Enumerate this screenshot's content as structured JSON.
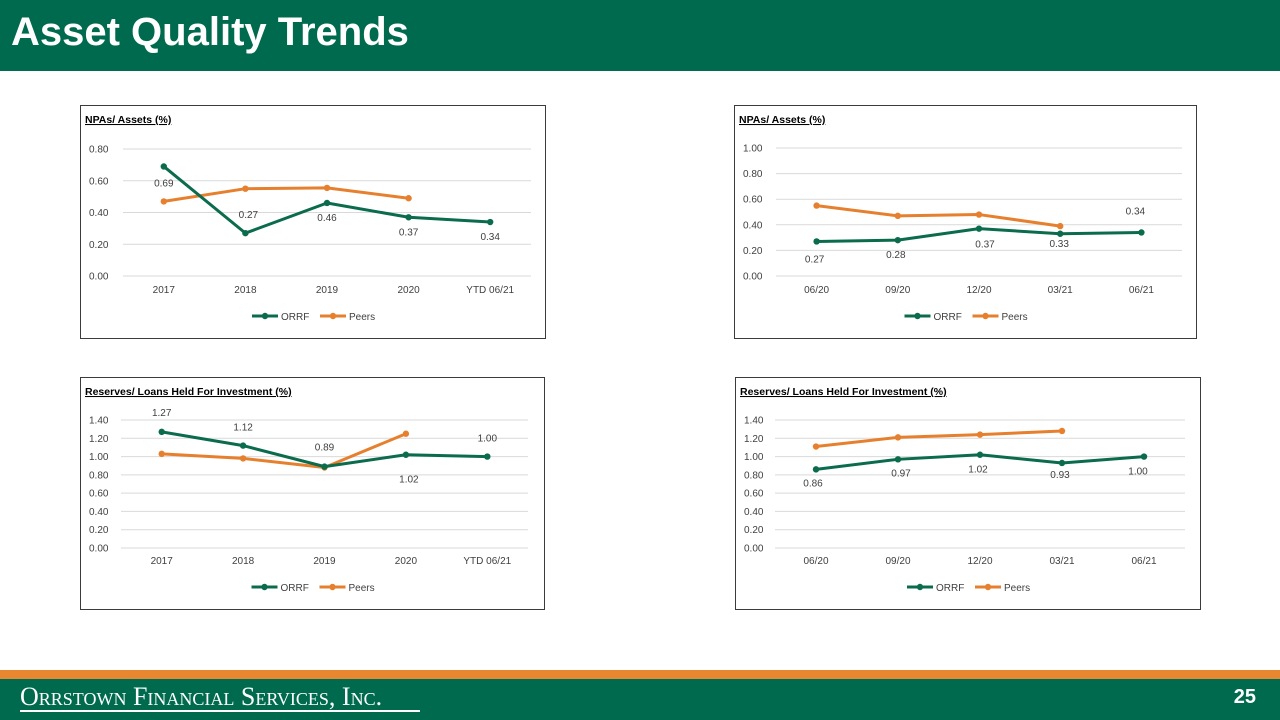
{
  "page": {
    "title": "Asset Quality Trends",
    "company": "Orrstown Financial Services, Inc.",
    "page_number": "25"
  },
  "colors": {
    "brand_green": "#006a4e",
    "accent_orange": "#e8872f",
    "orrf": "#0b6b4d",
    "peers": "#e6802e"
  },
  "chart_data": [
    {
      "type": "line",
      "title": "NPAs/ Assets (%)",
      "categories": [
        "2017",
        "2018",
        "2019",
        "2020",
        "YTD 06/21"
      ],
      "ylim": [
        0,
        0.8
      ],
      "yticks": [
        "0.00",
        "0.20",
        "0.40",
        "0.60",
        "0.80"
      ],
      "series": [
        {
          "name": "ORRF",
          "values": [
            0.69,
            0.27,
            0.46,
            0.37,
            0.34
          ],
          "labels": [
            "0.69",
            "0.27",
            "0.46",
            "0.37",
            "0.34"
          ]
        },
        {
          "name": "Peers",
          "values": [
            0.47,
            0.55,
            0.555,
            0.49,
            null
          ]
        }
      ],
      "legend": [
        "ORRF",
        "Peers"
      ]
    },
    {
      "type": "line",
      "title": "NPAs/ Assets (%)",
      "categories": [
        "06/20",
        "09/20",
        "12/20",
        "03/21",
        "06/21"
      ],
      "ylim": [
        0,
        1.0
      ],
      "yticks": [
        "0.00",
        "0.20",
        "0.40",
        "0.60",
        "0.80",
        "1.00"
      ],
      "series": [
        {
          "name": "ORRF",
          "values": [
            0.27,
            0.28,
            0.37,
            0.33,
            0.34
          ],
          "labels": [
            "0.27",
            "0.28",
            "0.37",
            "0.33",
            "0.34"
          ]
        },
        {
          "name": "Peers",
          "values": [
            0.55,
            0.47,
            0.48,
            0.39,
            null
          ]
        }
      ],
      "legend": [
        "ORRF",
        "Peers"
      ]
    },
    {
      "type": "line",
      "title": "Reserves/ Loans Held For Investment (%)",
      "categories": [
        "2017",
        "2018",
        "2019",
        "2020",
        "YTD 06/21"
      ],
      "ylim": [
        0,
        1.4
      ],
      "yticks": [
        "0.00",
        "0.20",
        "0.40",
        "0.60",
        "0.80",
        "1.00",
        "1.20",
        "1.40"
      ],
      "series": [
        {
          "name": "ORRF",
          "values": [
            1.27,
            1.12,
            0.89,
            1.02,
            1.0
          ],
          "labels": [
            "1.27",
            "1.12",
            "0.89",
            "1.02",
            "1.00"
          ]
        },
        {
          "name": "Peers",
          "values": [
            1.03,
            0.98,
            0.88,
            1.25,
            null
          ]
        }
      ],
      "legend": [
        "ORRF",
        "Peers"
      ]
    },
    {
      "type": "line",
      "title": "Reserves/ Loans Held For Investment (%)",
      "categories": [
        "06/20",
        "09/20",
        "12/20",
        "03/21",
        "06/21"
      ],
      "ylim": [
        0,
        1.4
      ],
      "yticks": [
        "0.00",
        "0.20",
        "0.40",
        "0.60",
        "0.80",
        "1.00",
        "1.20",
        "1.40"
      ],
      "series": [
        {
          "name": "ORRF",
          "values": [
            0.86,
            0.97,
            1.02,
            0.93,
            1.0
          ],
          "labels": [
            "0.86",
            "0.97",
            "1.02",
            "0.93",
            "1.00"
          ]
        },
        {
          "name": "Peers",
          "values": [
            1.11,
            1.21,
            1.24,
            1.28,
            null
          ]
        }
      ],
      "legend": [
        "ORRF",
        "Peers"
      ]
    }
  ]
}
